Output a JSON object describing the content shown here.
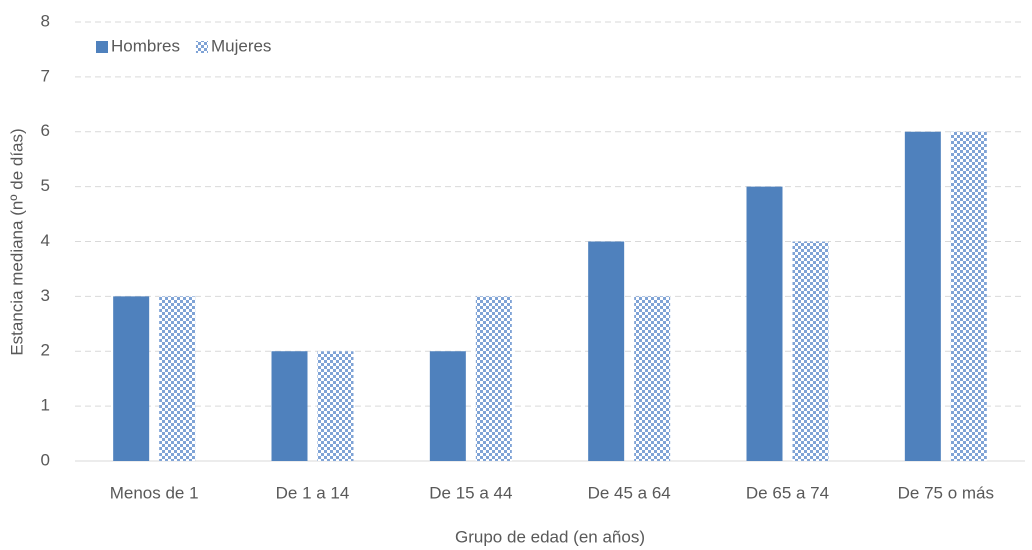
{
  "chart_data": {
    "type": "bar",
    "xlabel": "Grupo de edad (en años)",
    "ylabel": "Estancia mediana (nº de días)",
    "categories": [
      "Menos de 1",
      "De 1 a 14",
      "De 15 a 44",
      "De 45 a 64",
      "De 65 a 74",
      "De 75 o más"
    ],
    "series": [
      {
        "name": "Hombres",
        "color": "#4f81bd",
        "values": [
          3,
          2,
          2,
          4,
          5,
          6
        ]
      },
      {
        "name": "Mujeres",
        "color": "#7fa3d6",
        "pattern": "checkered",
        "values": [
          3,
          2,
          3,
          3,
          4,
          6
        ]
      }
    ],
    "ylim": [
      0,
      8
    ],
    "yticks": [
      0,
      1,
      2,
      3,
      4,
      5,
      6,
      7,
      8
    ],
    "grid": true,
    "legend": "top-left"
  }
}
